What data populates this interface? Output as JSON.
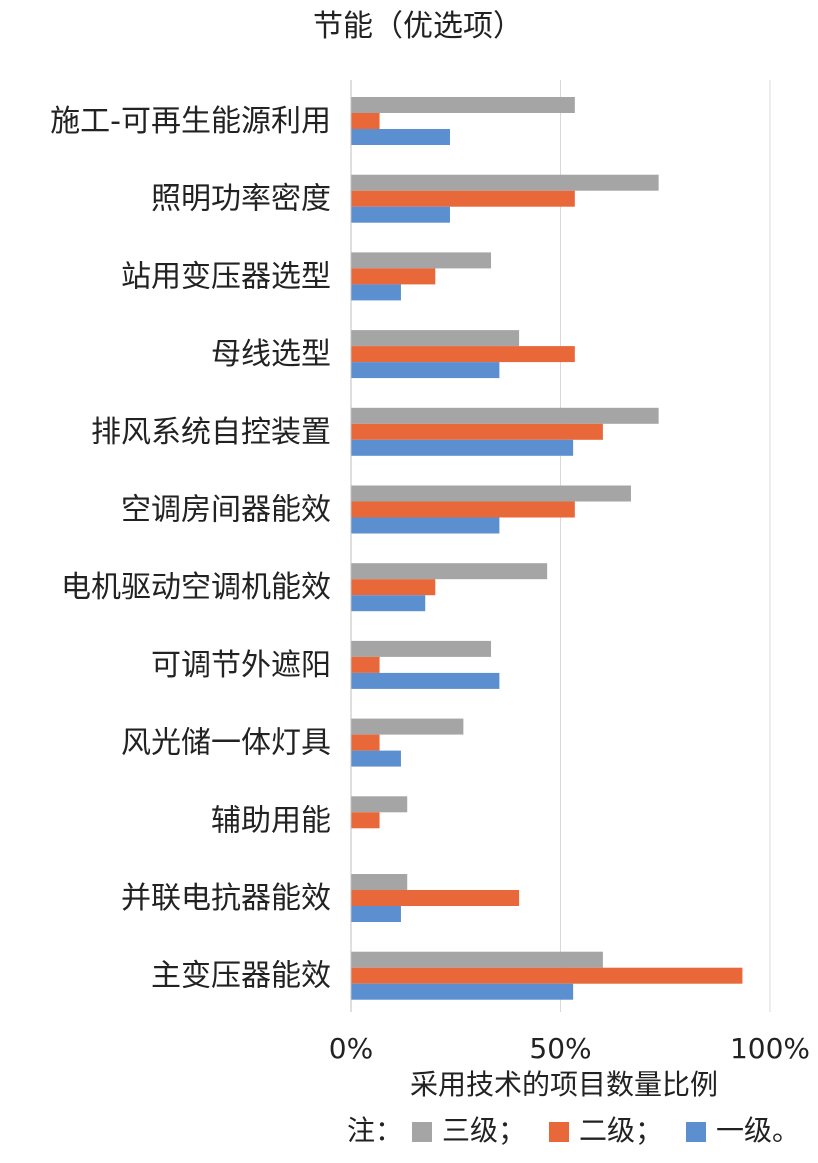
{
  "chart_data": {
    "type": "bar",
    "orientation": "horizontal",
    "title": "节能（优选项）",
    "xlabel": "采用技术的项目数量比例",
    "ylabel": "",
    "xlim": [
      0,
      100
    ],
    "x_ticks": [
      "0%",
      "50%",
      "100%"
    ],
    "grid": true,
    "categories": [
      "施工-可再生能源利用",
      "照明功率密度",
      "站用变压器选型",
      "母线选型",
      "排风系统自控装置",
      "空调房间器能效",
      "电机驱动空调机能效",
      "可调节外遮阳",
      "风光储一体灯具",
      "辅助用能",
      "并联电抗器能效",
      "主变压器能效"
    ],
    "series": [
      {
        "name": "三级",
        "color": "#A5A5A5",
        "values": [
          53.3,
          73.3,
          33.3,
          40,
          73.3,
          66.7,
          46.7,
          33.3,
          26.7,
          13.3,
          13.3,
          60
        ]
      },
      {
        "name": "二级",
        "color": "#E8683A",
        "values": [
          6.7,
          53.3,
          20,
          53.3,
          60,
          53.3,
          20,
          6.7,
          6.7,
          6.7,
          40,
          93.3
        ]
      },
      {
        "name": "一级",
        "color": "#5B8FD0",
        "values": [
          23.5,
          23.5,
          11.8,
          35.3,
          52.9,
          35.3,
          17.6,
          35.3,
          11.8,
          null,
          11.8,
          52.9
        ]
      }
    ],
    "legend": {
      "position": "bottom",
      "prefix": "注：",
      "separators": [
        "；",
        "；",
        "。"
      ]
    }
  }
}
